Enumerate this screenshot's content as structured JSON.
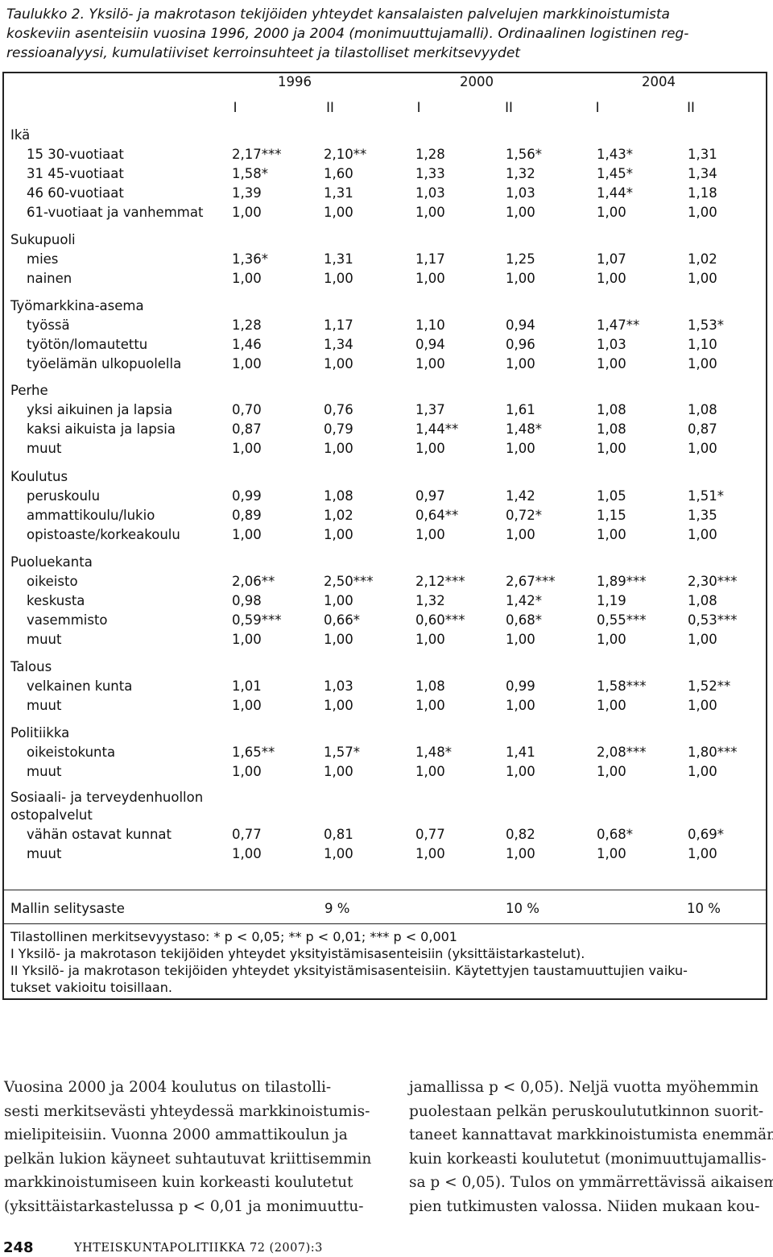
{
  "caption": [
    "Taulukko 2. Yksilö- ja makrotason tekijöiden yhteydet kansalaisten palvelujen markkinoistumista",
    "koskeviin asenteisiin vuosina 1996, 2000 ja 2004 (monimuuttujamalli). Ordinaalinen logistinen reg-",
    "ressioanalyysi, kumulatiiviset kerroinsuhteet ja tilastolliset merkitsevyydet"
  ],
  "table": {
    "years": [
      "1996",
      "2000",
      "2004"
    ],
    "models": [
      "I",
      "II",
      "I",
      "II",
      "I",
      "II"
    ],
    "groups": [
      {
        "label": "Ikä",
        "rows": [
          {
            "label": "15 30-vuotiaat",
            "values": [
              "2,17***",
              "2,10**",
              "1,28",
              "1,56*",
              "1,43*",
              "1,31"
            ]
          },
          {
            "label": "31 45-vuotiaat",
            "values": [
              "1,58*",
              "1,60",
              "1,33",
              "1,32",
              "1,45*",
              "1,34"
            ]
          },
          {
            "label": "46 60-vuotiaat",
            "values": [
              "1,39",
              "1,31",
              "1,03",
              "1,03",
              "1,44*",
              "1,18"
            ]
          },
          {
            "label": "61-vuotiaat ja vanhemmat",
            "values": [
              "1,00",
              "1,00",
              "1,00",
              "1,00",
              "1,00",
              "1,00"
            ]
          }
        ]
      },
      {
        "label": "Sukupuoli",
        "rows": [
          {
            "label": "mies",
            "values": [
              "1,36*",
              "1,31",
              "1,17",
              "1,25",
              "1,07",
              "1,02"
            ]
          },
          {
            "label": "nainen",
            "values": [
              "1,00",
              "1,00",
              "1,00",
              "1,00",
              "1,00",
              "1,00"
            ]
          }
        ]
      },
      {
        "label": "Työmarkkina-asema",
        "rows": [
          {
            "label": "työssä",
            "values": [
              "1,28",
              "1,17",
              "1,10",
              "0,94",
              "1,47**",
              "1,53*"
            ]
          },
          {
            "label": "työtön/lomautettu",
            "values": [
              "1,46",
              "1,34",
              "0,94",
              "0,96",
              "1,03",
              "1,10"
            ]
          },
          {
            "label": "työelämän ulkopuolella",
            "values": [
              "1,00",
              "1,00",
              "1,00",
              "1,00",
              "1,00",
              "1,00"
            ]
          }
        ]
      },
      {
        "label": "Perhe",
        "rows": [
          {
            "label": "yksi aikuinen ja lapsia",
            "values": [
              "0,70",
              "0,76",
              "1,37",
              "1,61",
              "1,08",
              "1,08"
            ]
          },
          {
            "label": "kaksi aikuista ja lapsia",
            "values": [
              "0,87",
              "0,79",
              "1,44**",
              "1,48*",
              "1,08",
              "0,87"
            ]
          },
          {
            "label": "muut",
            "values": [
              "1,00",
              "1,00",
              "1,00",
              "1,00",
              "1,00",
              "1,00"
            ]
          }
        ]
      },
      {
        "label": "Koulutus",
        "rows": [
          {
            "label": "peruskoulu",
            "values": [
              "0,99",
              "1,08",
              "0,97",
              "1,42",
              "1,05",
              "1,51*"
            ]
          },
          {
            "label": "ammattikoulu/lukio",
            "values": [
              "0,89",
              "1,02",
              "0,64**",
              "0,72*",
              "1,15",
              "1,35"
            ]
          },
          {
            "label": "opistoaste/korkeakoulu",
            "values": [
              "1,00",
              "1,00",
              "1,00",
              "1,00",
              "1,00",
              "1,00"
            ]
          }
        ]
      },
      {
        "label": "Puoluekanta",
        "rows": [
          {
            "label": "oikeisto",
            "values": [
              "2,06**",
              "2,50***",
              "2,12***",
              "2,67***",
              "1,89***",
              "2,30***"
            ]
          },
          {
            "label": "keskusta",
            "values": [
              "0,98",
              "1,00",
              "1,32",
              "1,42*",
              "1,19",
              "1,08"
            ]
          },
          {
            "label": "vasemmisto",
            "values": [
              "0,59***",
              "0,66*",
              "0,60***",
              "0,68*",
              "0,55***",
              "0,53***"
            ]
          },
          {
            "label": "muut",
            "values": [
              "1,00",
              "1,00",
              "1,00",
              "1,00",
              "1,00",
              "1,00"
            ]
          }
        ]
      },
      {
        "label": "Talous",
        "rows": [
          {
            "label": "velkainen kunta",
            "values": [
              "1,01",
              "1,03",
              "1,08",
              "0,99",
              "1,58***",
              "1,52**"
            ]
          },
          {
            "label": "muut",
            "values": [
              "1,00",
              "1,00",
              "1,00",
              "1,00",
              "1,00",
              "1,00"
            ]
          }
        ]
      },
      {
        "label": "Politiikka",
        "rows": [
          {
            "label": "oikeistokunta",
            "values": [
              "1,65**",
              "1,57*",
              "1,48*",
              "1,41",
              "2,08***",
              "1,80***"
            ]
          },
          {
            "label": "muut",
            "values": [
              "1,00",
              "1,00",
              "1,00",
              "1,00",
              "1,00",
              "1,00"
            ]
          }
        ]
      },
      {
        "label": "Sosiaali- ja terveydenhuollon",
        "label2": "ostopalvelut",
        "rows": [
          {
            "label": "vähän ostavat kunnat",
            "values": [
              "0,77",
              "0,81",
              "0,77",
              "0,82",
              "0,68*",
              "0,69*"
            ]
          },
          {
            "label": "muut",
            "values": [
              "1,00",
              "1,00",
              "1,00",
              "1,00",
              "1,00",
              "1,00"
            ]
          }
        ]
      }
    ],
    "r2": {
      "label": "Mallin selitysaste",
      "values": [
        "9 %",
        "10 %",
        "10 %"
      ]
    },
    "notes": [
      "Tilastollinen merkitsevyystaso: * p < 0,05; ** p < 0,01; *** p < 0,001",
      "I Yksilö- ja makrotason tekijöiden yhteydet yksityistämisasenteisiin (yksittäistarkastelut).",
      "II Yksilö- ja makrotason tekijöiden yhteydet yksityistämisasenteisiin. Käytettyjen taustamuuttujien vaiku-",
      "tukset vakioitu toisillaan."
    ]
  },
  "body": {
    "left": [
      "Vuosina 2000 ja 2004 koulutus on tilastolli-",
      "sesti merkitsevästi yhteydessä markkinoistumis-",
      "mielipiteisiin. Vuonna 2000 ammattikoulun ja",
      "pelkän lukion käyneet suhtautuvat kriittisemmin",
      "markkinoistumiseen kuin korkeasti koulutetut",
      "(yksittäistarkastelussa p < 0,01 ja monimuuttu-"
    ],
    "right": [
      "jamallissa p < 0,05). Neljä vuotta myöhemmin",
      "puolestaan pelkän peruskoulututkinnon suorit-",
      "taneet kannattavat markkinoistumista enemmän",
      "kuin korkeasti koulutetut (monimuuttujamallis-",
      "sa p < 0,05). Tulos on ymmärrettävissä aikaisem-",
      "pien tutkimusten valossa. Niiden mukaan kou-"
    ]
  },
  "footer": {
    "page_number": "248",
    "journal": "YHTEISKUNTAPOLITIIKKA 72 (2007):3"
  }
}
